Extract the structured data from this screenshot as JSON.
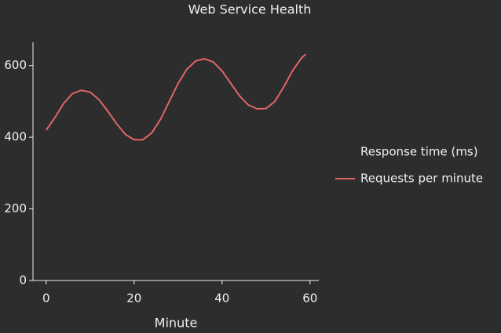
{
  "chart_data": {
    "type": "line",
    "title": "Web Service Health",
    "xlabel": "Minute",
    "legend_title": "Response time (ms)",
    "x": [
      0,
      2,
      4,
      6,
      8,
      10,
      12,
      14,
      16,
      18,
      20,
      22,
      24,
      26,
      28,
      30,
      32,
      34,
      36,
      38,
      40,
      42,
      44,
      46,
      48,
      50,
      52,
      54,
      56,
      58,
      59
    ],
    "series": [
      {
        "name": "Requests per minute",
        "color": "#e06666",
        "values": [
          420,
          455,
          495,
          522,
          531,
          526,
          505,
          473,
          438,
          408,
          393,
          393,
          412,
          450,
          500,
          550,
          590,
          613,
          619,
          610,
          585,
          550,
          515,
          490,
          479,
          480,
          500,
          540,
          585,
          620,
          632
        ]
      }
    ],
    "xlim": [
      -3,
      62
    ],
    "xticks": [
      0,
      20,
      40,
      60
    ],
    "ylim": [
      0,
      665
    ],
    "yticks": [
      0,
      200,
      400,
      600
    ],
    "legend": "right"
  }
}
